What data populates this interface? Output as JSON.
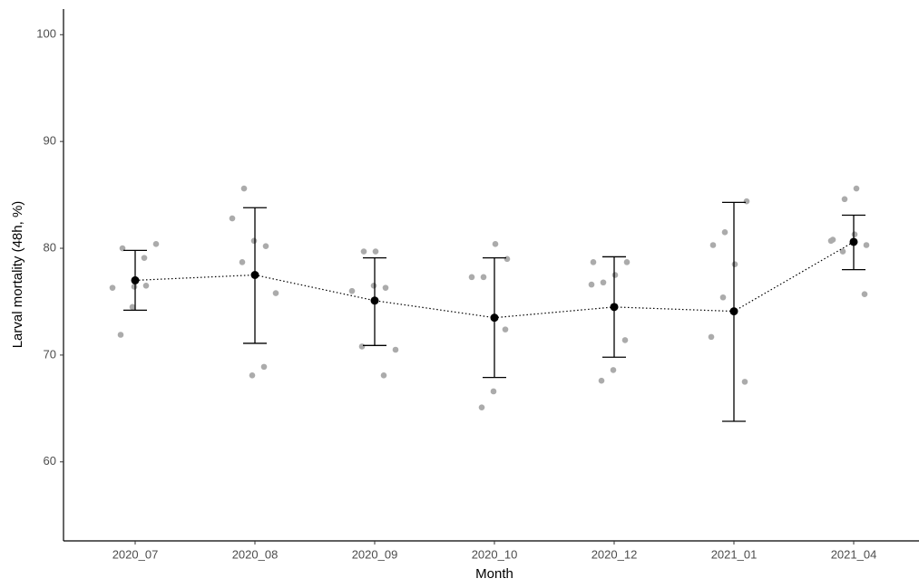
{
  "chart_data": {
    "type": "errorbar",
    "x_label": "Month",
    "y_label": "Larval mortality (48h, %)",
    "categories": [
      "2020_07",
      "2020_08",
      "2020_09",
      "2020_10",
      "2020_12",
      "2021_01",
      "2021_04"
    ],
    "mean": [
      77.0,
      77.5,
      75.1,
      73.5,
      74.5,
      74.1,
      80.6
    ],
    "lower": [
      74.2,
      71.1,
      70.9,
      67.9,
      69.8,
      63.8,
      78.0
    ],
    "upper": [
      79.8,
      83.8,
      79.1,
      79.1,
      79.2,
      84.3,
      83.1
    ],
    "points": [
      [
        76.3,
        76.5,
        76.4,
        80.0,
        80.4,
        79.1,
        74.5,
        71.9
      ],
      [
        85.6,
        82.8,
        80.2,
        80.7,
        78.7,
        75.8,
        68.9,
        68.1
      ],
      [
        79.7,
        79.7,
        76.0,
        76.3,
        76.5,
        70.8,
        70.5,
        68.1
      ],
      [
        79.0,
        80.4,
        77.3,
        77.3,
        72.4,
        66.6,
        65.1
      ],
      [
        78.7,
        78.7,
        77.5,
        76.8,
        76.6,
        71.4,
        68.6,
        67.6
      ],
      [
        81.5,
        80.3,
        84.4,
        78.5,
        75.4,
        71.7,
        67.5
      ],
      [
        85.6,
        84.6,
        80.8,
        80.3,
        81.3,
        79.7,
        80.7,
        75.7
      ]
    ],
    "ylim": [
      52.6,
      102.4
    ],
    "yticks": [
      60,
      70,
      80,
      90,
      100
    ],
    "grid": false,
    "point_color": "#ababab",
    "mean_color": "#000000"
  }
}
